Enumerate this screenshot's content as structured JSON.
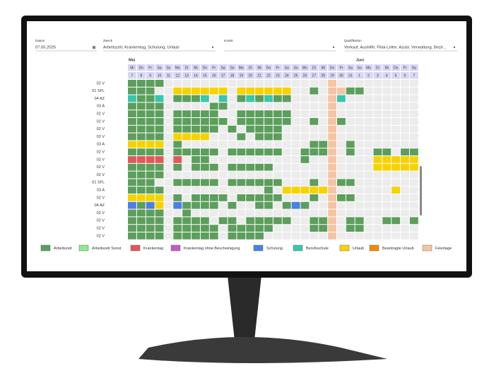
{
  "filters": [
    {
      "label": "Datum",
      "value": "07.05.2025"
    },
    {
      "label": "Zweck",
      "value": "Arbeitszeit, Krankentag, Schulung, Urlaub"
    },
    {
      "label": "Kostst."
    },
    {
      "label": "Qualifikation",
      "value": "Verkauf, Aushilfe, Filial-Leiter, Azubi, Verwaltung, Bezir..."
    }
  ],
  "months": [
    {
      "label": "Mai",
      "start": 0
    },
    {
      "label": "Juni",
      "start": 25
    }
  ],
  "days": [
    {
      "weekday": "Mi",
      "date": 7
    },
    {
      "weekday": "Do",
      "date": 8
    },
    {
      "weekday": "Fr",
      "date": 9
    },
    {
      "weekday": "Sa",
      "date": 10
    },
    {
      "weekday": "So",
      "date": 11
    },
    {
      "weekday": "Mo",
      "date": 12
    },
    {
      "weekday": "Di",
      "date": 13
    },
    {
      "weekday": "Mi",
      "date": 14
    },
    {
      "weekday": "Do",
      "date": 15
    },
    {
      "weekday": "Fr",
      "date": 16
    },
    {
      "weekday": "Sa",
      "date": 17
    },
    {
      "weekday": "So",
      "date": 18
    },
    {
      "weekday": "Mo",
      "date": 19
    },
    {
      "weekday": "Di",
      "date": 20
    },
    {
      "weekday": "Mi",
      "date": 21
    },
    {
      "weekday": "Do",
      "date": 22
    },
    {
      "weekday": "Fr",
      "date": 23
    },
    {
      "weekday": "Sa",
      "date": 24
    },
    {
      "weekday": "So",
      "date": 25
    },
    {
      "weekday": "Mo",
      "date": 26
    },
    {
      "weekday": "Di",
      "date": 27
    },
    {
      "weekday": "Mi",
      "date": 28
    },
    {
      "weekday": "Do",
      "date": 29
    },
    {
      "weekday": "Fr",
      "date": 30
    },
    {
      "weekday": "Sa",
      "date": 31
    },
    {
      "weekday": "So",
      "date": 1
    },
    {
      "weekday": "Mo",
      "date": 2
    },
    {
      "weekday": "Di",
      "date": 3
    },
    {
      "weekday": "Mi",
      "date": 4
    },
    {
      "weekday": "Do",
      "date": 5
    },
    {
      "weekday": "Fr",
      "date": 6
    },
    {
      "weekday": "Sa",
      "date": 7
    }
  ],
  "rows": [
    "02 V",
    "01 SFL",
    "04 AZ",
    "03 A",
    "02 V",
    "02 V",
    "02 V",
    "02 V",
    "03 A",
    "02 V",
    "02 V",
    "02 V",
    "02 V",
    "01 SFL",
    "03 A",
    "02 V",
    "04 AZ",
    "02 V",
    "02 V",
    "02 V",
    "02 V"
  ],
  "legend": [
    {
      "label": "Arbeitszeit",
      "color": "#5c9e5c"
    },
    {
      "label": "Arbeitszeit Sonst",
      "color": "#8eea8e"
    },
    {
      "label": "Krankentag",
      "color": "#e25858"
    },
    {
      "label": "Krankentag ohne Bescheinigung",
      "color": "#c45cc4"
    },
    {
      "label": "Schulung",
      "color": "#4a80e6"
    },
    {
      "label": "Berufsschule",
      "color": "#38c6ad"
    },
    {
      "label": "Urlaub",
      "color": "#f6d200"
    },
    {
      "label": "Beantragte Urlaub",
      "color": "#f08c00"
    },
    {
      "label": "Feiertage",
      "color": "#f8c3a2"
    }
  ]
}
